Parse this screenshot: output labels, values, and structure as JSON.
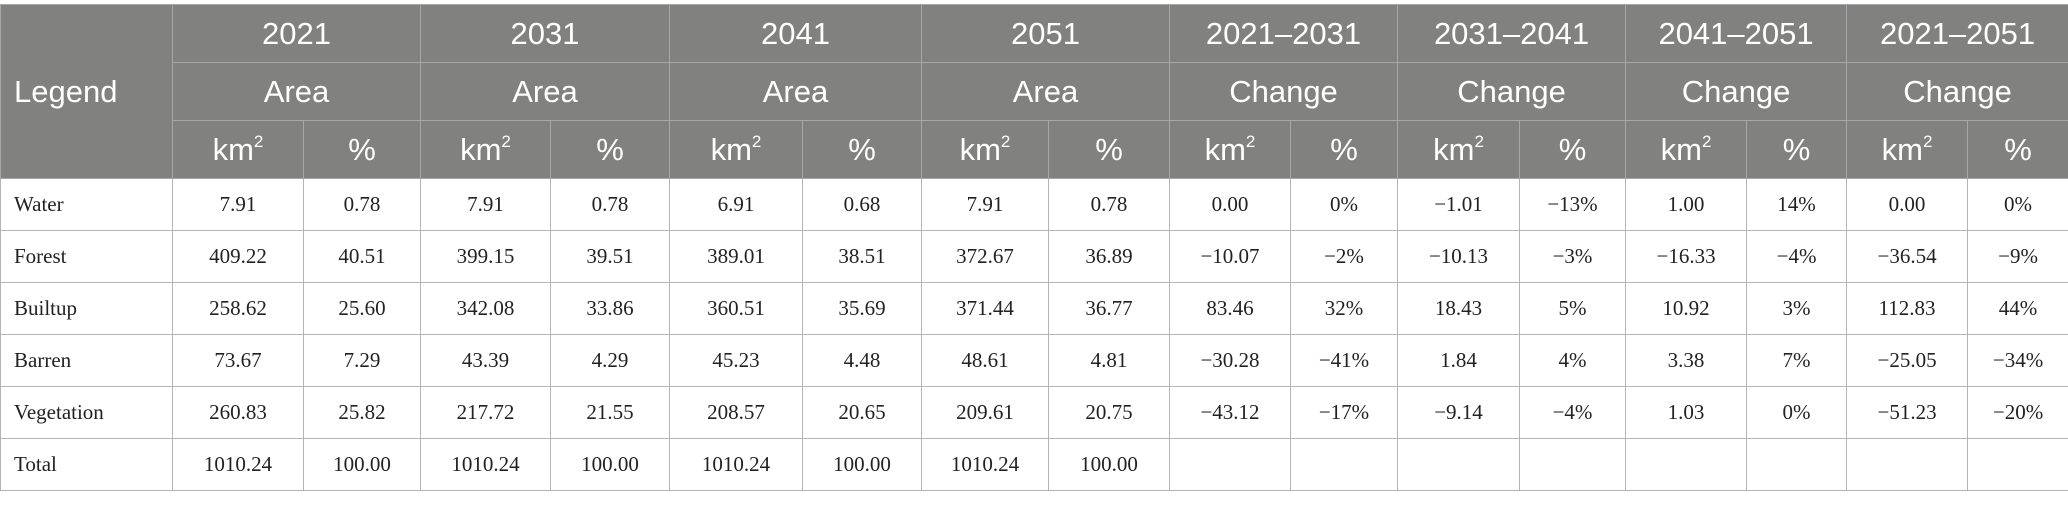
{
  "table": {
    "legend_header": "Legend",
    "periods": [
      {
        "label": "2021",
        "type": "Area"
      },
      {
        "label": "2031",
        "type": "Area"
      },
      {
        "label": "2041",
        "type": "Area"
      },
      {
        "label": "2051",
        "type": "Area"
      },
      {
        "label": "2021–2031",
        "type": "Change"
      },
      {
        "label": "2031–2041",
        "type": "Change"
      },
      {
        "label": "2041–2051",
        "type": "Change"
      },
      {
        "label": "2021–2051",
        "type": "Change"
      }
    ],
    "unit_area": "km",
    "unit_area_exp": "2",
    "unit_pct": "%",
    "rows": [
      {
        "label": "Water",
        "values": [
          "7.91",
          "0.78",
          "7.91",
          "0.78",
          "6.91",
          "0.68",
          "7.91",
          "0.78",
          "0.00",
          "0%",
          "−1.01",
          "−13%",
          "1.00",
          "14%",
          "0.00",
          "0%"
        ]
      },
      {
        "label": "Forest",
        "values": [
          "409.22",
          "40.51",
          "399.15",
          "39.51",
          "389.01",
          "38.51",
          "372.67",
          "36.89",
          "−10.07",
          "−2%",
          "−10.13",
          "−3%",
          "−16.33",
          "−4%",
          "−36.54",
          "−9%"
        ]
      },
      {
        "label": "Builtup",
        "values": [
          "258.62",
          "25.60",
          "342.08",
          "33.86",
          "360.51",
          "35.69",
          "371.44",
          "36.77",
          "83.46",
          "32%",
          "18.43",
          "5%",
          "10.92",
          "3%",
          "112.83",
          "44%"
        ]
      },
      {
        "label": "Barren",
        "values": [
          "73.67",
          "7.29",
          "43.39",
          "4.29",
          "45.23",
          "4.48",
          "48.61",
          "4.81",
          "−30.28",
          "−41%",
          "1.84",
          "4%",
          "3.38",
          "7%",
          "−25.05",
          "−34%"
        ]
      },
      {
        "label": "Vegetation",
        "values": [
          "260.83",
          "25.82",
          "217.72",
          "21.55",
          "208.57",
          "20.65",
          "209.61",
          "20.75",
          "−43.12",
          "−17%",
          "−9.14",
          "−4%",
          "1.03",
          "0%",
          "−51.23",
          "−20%"
        ]
      },
      {
        "label": "Total",
        "values": [
          "1010.24",
          "100.00",
          "1010.24",
          "100.00",
          "1010.24",
          "100.00",
          "1010.24",
          "100.00",
          "",
          "",
          "",
          "",
          "",
          "",
          "",
          ""
        ]
      }
    ]
  },
  "colors": {
    "header_bg": "#818180",
    "header_text": "#ffffff",
    "border": "#b4b4b4"
  }
}
